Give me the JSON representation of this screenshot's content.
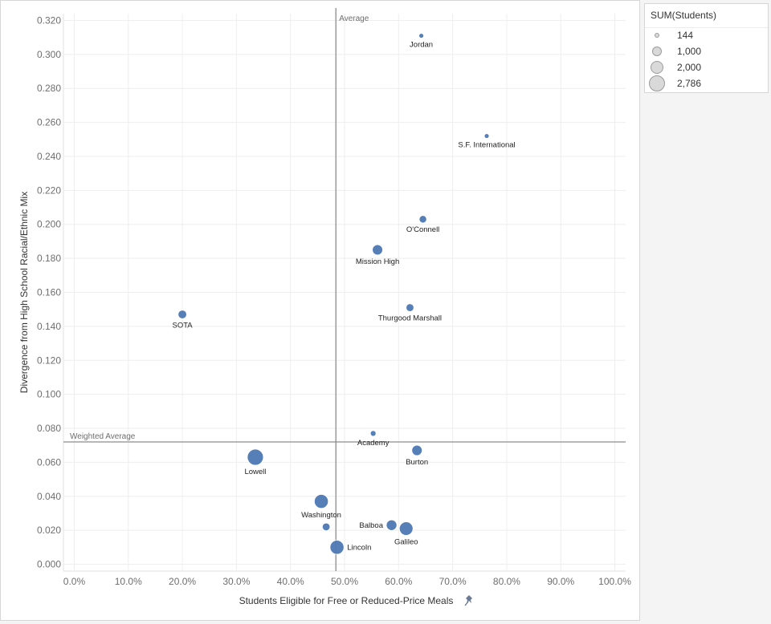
{
  "chart_data": {
    "type": "scatter",
    "xlabel": "Students Eligible for Free or Reduced-Price Meals",
    "ylabel": "Divergence from High School Racial/Ethnic Mix",
    "xlim": [
      -0.02,
      1.02
    ],
    "ylim": [
      -0.004,
      0.324
    ],
    "x_ticks": [
      0.0,
      0.1,
      0.2,
      0.3,
      0.4,
      0.5,
      0.6,
      0.7,
      0.8,
      0.9,
      1.0
    ],
    "x_tick_labels": [
      "0.0%",
      "10.0%",
      "20.0%",
      "30.0%",
      "40.0%",
      "50.0%",
      "60.0%",
      "70.0%",
      "80.0%",
      "90.0%",
      "100.0%"
    ],
    "y_ticks": [
      0,
      0.02,
      0.04,
      0.06,
      0.08,
      0.1,
      0.12,
      0.14,
      0.16,
      0.18,
      0.2,
      0.22,
      0.24,
      0.26,
      0.28,
      0.3,
      0.32
    ],
    "y_tick_labels": [
      "0.000",
      "0.020",
      "0.040",
      "0.060",
      "0.080",
      "0.100",
      "0.120",
      "0.140",
      "0.160",
      "0.180",
      "0.200",
      "0.220",
      "0.240",
      "0.260",
      "0.280",
      "0.300",
      "0.320"
    ],
    "grid": true,
    "point_color": "#4e79b5",
    "points": [
      {
        "name": "Jordan",
        "x": 0.642,
        "y": 0.311,
        "size": 144,
        "label_pos": "below"
      },
      {
        "name": "S.F. International",
        "x": 0.763,
        "y": 0.252,
        "size": 200,
        "label_pos": "below"
      },
      {
        "name": "O'Connell",
        "x": 0.645,
        "y": 0.203,
        "size": 600,
        "label_pos": "below"
      },
      {
        "name": "Mission High",
        "x": 0.561,
        "y": 0.185,
        "size": 1150,
        "label_pos": "below"
      },
      {
        "name": "Thurgood Marshall",
        "x": 0.621,
        "y": 0.151,
        "size": 650,
        "label_pos": "below"
      },
      {
        "name": "SOTA",
        "x": 0.2,
        "y": 0.147,
        "size": 800,
        "label_pos": "below"
      },
      {
        "name": "Academy",
        "x": 0.553,
        "y": 0.077,
        "size": 350,
        "label_pos": "below"
      },
      {
        "name": "Burton",
        "x": 0.634,
        "y": 0.067,
        "size": 1150,
        "label_pos": "below"
      },
      {
        "name": "Lowell",
        "x": 0.335,
        "y": 0.063,
        "size": 2786,
        "label_pos": "below"
      },
      {
        "name": "Washington",
        "x": 0.457,
        "y": 0.037,
        "size": 2100,
        "label_pos": "below"
      },
      {
        "name": "Balboa",
        "x": 0.587,
        "y": 0.023,
        "size": 1200,
        "label_pos": "left"
      },
      {
        "name": "Galileo",
        "x": 0.614,
        "y": 0.021,
        "size": 2000,
        "label_pos": "below"
      },
      {
        "name": "",
        "x": 0.466,
        "y": 0.022,
        "size": 650,
        "label_pos": "none"
      },
      {
        "name": "Lincoln",
        "x": 0.486,
        "y": 0.01,
        "size": 2100,
        "label_pos": "right"
      }
    ],
    "reference_lines": [
      {
        "axis": "x",
        "value": 0.484,
        "label": "Average"
      },
      {
        "axis": "y",
        "value": 0.072,
        "label": "Weighted Average"
      }
    ],
    "legend": {
      "title": "SUM(Students)",
      "placement": "top-right",
      "items": [
        {
          "label": "144",
          "value": 144
        },
        {
          "label": "1,000",
          "value": 1000
        },
        {
          "label": "2,000",
          "value": 2000
        },
        {
          "label": "2,786",
          "value": 2786
        }
      ]
    }
  },
  "icons": {
    "x_axis_pin": "pin-icon"
  }
}
